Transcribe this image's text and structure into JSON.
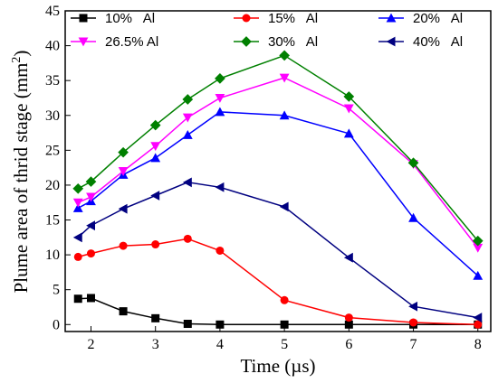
{
  "chart_data": {
    "type": "line",
    "xlabel": "Time (µs)",
    "ylabel_main": "Plume area of thrid stage (mm",
    "ylabel_sup": "2",
    "ylabel_close": ")",
    "xlim": [
      1.6,
      8.2
    ],
    "ylim": [
      -1,
      45
    ],
    "xticks": [
      2,
      3,
      4,
      5,
      6,
      7,
      8
    ],
    "yticks": [
      0,
      5,
      10,
      15,
      20,
      25,
      30,
      35,
      40,
      45
    ],
    "grid": false,
    "legend_position": "top",
    "series": [
      {
        "name": "10%   Al",
        "color": "#000000",
        "marker": "square",
        "x": [
          1.8,
          2,
          2.5,
          3,
          3.5,
          4,
          5,
          6,
          7,
          8
        ],
        "y": [
          3.7,
          3.8,
          1.9,
          0.9,
          0.1,
          0,
          0,
          0,
          0,
          0
        ]
      },
      {
        "name": "15%   Al",
        "color": "#ff0000",
        "marker": "circle",
        "x": [
          1.8,
          2,
          2.5,
          3,
          3.5,
          4,
          5,
          6,
          7,
          8
        ],
        "y": [
          9.7,
          10.2,
          11.3,
          11.5,
          12.3,
          10.6,
          3.5,
          1.0,
          0.3,
          0
        ]
      },
      {
        "name": "20%   Al",
        "color": "#0000ff",
        "marker": "triangle-up",
        "x": [
          1.8,
          2,
          2.5,
          3,
          3.5,
          4,
          5,
          6,
          7,
          8
        ],
        "y": [
          16.7,
          17.7,
          21.5,
          23.9,
          27.2,
          30.5,
          30.0,
          27.4,
          15.3,
          7.0
        ]
      },
      {
        "name": "26.5% Al",
        "color": "#ff00ff",
        "marker": "triangle-down",
        "x": [
          1.8,
          2,
          2.5,
          3,
          3.5,
          4,
          5,
          6,
          7,
          8
        ],
        "y": [
          17.5,
          18.3,
          22.0,
          25.6,
          29.7,
          32.5,
          35.4,
          31.0,
          23.0,
          11.0
        ]
      },
      {
        "name": "30%   Al",
        "color": "#008000",
        "marker": "diamond",
        "x": [
          1.8,
          2,
          2.5,
          3,
          3.5,
          4,
          5,
          6,
          7,
          8
        ],
        "y": [
          19.5,
          20.5,
          24.7,
          28.6,
          32.3,
          35.3,
          38.6,
          32.7,
          23.2,
          12.0
        ]
      },
      {
        "name": "40%   Al",
        "color": "#000080",
        "marker": "triangle-left",
        "x": [
          1.8,
          2,
          2.5,
          3,
          3.5,
          4,
          5,
          6,
          7,
          8
        ],
        "y": [
          12.5,
          14.2,
          16.6,
          18.5,
          20.4,
          19.7,
          16.9,
          9.6,
          2.6,
          1.0
        ]
      }
    ]
  }
}
